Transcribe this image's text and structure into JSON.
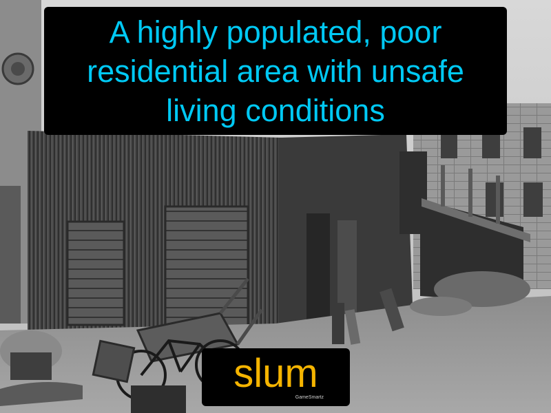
{
  "definition": {
    "text": "A highly populated, poor residential area with unsafe living conditions",
    "text_color": "#00c9f4",
    "background_color": "#000000"
  },
  "term": {
    "text": "slum",
    "text_color": "#f5b400",
    "background_color": "#000000"
  },
  "brand": {
    "text": "GameSmartz"
  },
  "photo": {
    "style": "black-and-white"
  }
}
